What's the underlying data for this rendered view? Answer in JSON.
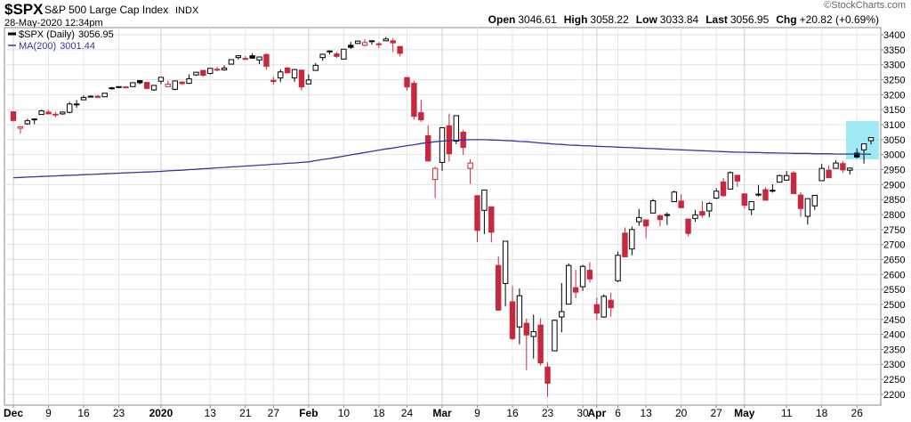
{
  "chart_data": {
    "type": "candlestick",
    "header": {
      "symbol": "$SPX",
      "name": "S&P 500 Large Cap Index",
      "exchange": "INDX",
      "datetime": "28-May-2020 12:34pm",
      "watermark": "©StockCharts.com",
      "quote": [
        {
          "label": "Open",
          "value": 3046.61
        },
        {
          "label": "High",
          "value": 3058.22
        },
        {
          "label": "Low",
          "value": 3033.84
        },
        {
          "label": "Last",
          "value": 3056.95
        },
        {
          "label": "Chg",
          "value": "+20.82 (+0.69%)"
        }
      ]
    },
    "categories": [
      "Dec",
      null,
      null,
      null,
      null,
      "9",
      null,
      null,
      null,
      null,
      "16",
      null,
      null,
      null,
      null,
      "23",
      null,
      null,
      null,
      null,
      null,
      "2020",
      null,
      null,
      null,
      null,
      null,
      null,
      "13",
      null,
      null,
      null,
      null,
      "21",
      null,
      null,
      null,
      "27",
      null,
      null,
      null,
      null,
      "Feb",
      null,
      null,
      null,
      null,
      "10",
      null,
      null,
      null,
      null,
      "18",
      null,
      null,
      null,
      "24",
      null,
      null,
      null,
      null,
      "Mar",
      null,
      null,
      null,
      null,
      "9",
      null,
      null,
      null,
      null,
      "16",
      null,
      null,
      null,
      null,
      "23",
      null,
      null,
      null,
      null,
      "30",
      null,
      "Apr",
      null,
      null,
      "6",
      null,
      null,
      null,
      "13",
      null,
      null,
      null,
      null,
      "20",
      null,
      null,
      null,
      null,
      "27",
      null,
      null,
      null,
      "May",
      null,
      null,
      null,
      null,
      null,
      "11",
      null,
      null,
      null,
      null,
      "18",
      null,
      null,
      null,
      null,
      "26",
      null,
      null
    ],
    "series": [
      {
        "name": "$SPX (Daily)",
        "up_color": "#000000",
        "down_color": "#c8283c",
        "ohlc": [
          [
            3143,
            3144,
            3110,
            3114
          ],
          [
            3088,
            3095,
            3070,
            3093
          ],
          [
            3103,
            3120,
            3100,
            3113
          ],
          [
            3119,
            3120,
            3102,
            3117
          ],
          [
            3134,
            3150,
            3134,
            3146
          ],
          [
            3142,
            3149,
            3135,
            3136
          ],
          [
            3135,
            3143,
            3125,
            3133
          ],
          [
            3136,
            3144,
            3133,
            3142
          ],
          [
            3141,
            3176,
            3138,
            3169
          ],
          [
            3167,
            3182,
            3156,
            3169
          ],
          [
            3183,
            3198,
            3183,
            3191
          ],
          [
            3195,
            3198,
            3192,
            3193
          ],
          [
            3195,
            3199,
            3191,
            3191
          ],
          [
            3193,
            3206,
            3192,
            3205
          ],
          [
            3223,
            3226,
            3217,
            3221
          ],
          [
            3227,
            3228,
            3222,
            3224
          ],
          [
            3226,
            3227,
            3222,
            3223
          ],
          [
            3227,
            3240,
            3227,
            3240
          ],
          [
            3247,
            3248,
            3235,
            3240
          ],
          [
            3241,
            3242,
            3218,
            3221
          ],
          [
            3216,
            3232,
            3213,
            3231
          ],
          [
            3245,
            3258,
            3235,
            3258
          ],
          [
            3227,
            3247,
            3226,
            3235
          ],
          [
            3218,
            3247,
            3215,
            3246
          ],
          [
            3242,
            3245,
            3233,
            3237
          ],
          [
            3238,
            3268,
            3236,
            3253
          ],
          [
            3266,
            3276,
            3263,
            3275
          ],
          [
            3281,
            3282,
            3260,
            3265
          ],
          [
            3271,
            3288,
            3268,
            3288
          ],
          [
            3285,
            3294,
            3278,
            3283
          ],
          [
            3283,
            3298,
            3280,
            3289
          ],
          [
            3302,
            3317,
            3302,
            3317
          ],
          [
            3324,
            3330,
            3318,
            3330
          ],
          [
            3321,
            3329,
            3316,
            3321
          ],
          [
            3330,
            3338,
            3320,
            3322
          ],
          [
            3316,
            3327,
            3302,
            3326
          ],
          [
            3334,
            3338,
            3284,
            3295
          ],
          [
            3248,
            3259,
            3234,
            3244
          ],
          [
            3256,
            3285,
            3242,
            3276
          ],
          [
            3289,
            3293,
            3271,
            3273
          ],
          [
            3256,
            3286,
            3243,
            3284
          ],
          [
            3282,
            3283,
            3214,
            3226
          ],
          [
            3236,
            3268,
            3236,
            3249
          ],
          [
            3281,
            3306,
            3281,
            3298
          ],
          [
            3324,
            3337,
            3313,
            3335
          ],
          [
            3345,
            3348,
            3335,
            3346
          ],
          [
            3336,
            3342,
            3323,
            3328
          ],
          [
            3319,
            3352,
            3317,
            3352
          ],
          [
            3365,
            3376,
            3353,
            3358
          ],
          [
            3371,
            3381,
            3369,
            3379
          ],
          [
            3365,
            3385,
            3361,
            3374
          ],
          [
            3379,
            3381,
            3367,
            3380
          ],
          [
            3369,
            3376,
            3356,
            3370
          ],
          [
            3380,
            3393,
            3379,
            3386
          ],
          [
            3380,
            3389,
            3342,
            3373
          ],
          [
            3361,
            3361,
            3328,
            3338
          ],
          [
            3257,
            3260,
            3214,
            3226
          ],
          [
            3238,
            3247,
            3118,
            3128
          ],
          [
            3140,
            3183,
            3109,
            3116
          ],
          [
            3063,
            3098,
            2977,
            2979
          ],
          [
            2917,
            2960,
            2855,
            2954
          ],
          [
            2974,
            3091,
            2946,
            3090
          ],
          [
            3096,
            3137,
            2977,
            3003
          ],
          [
            3045,
            3130,
            3035,
            3130
          ],
          [
            3075,
            3083,
            2999,
            3024
          ],
          [
            2954,
            2985,
            2902,
            2972
          ],
          [
            2863,
            2863,
            2708,
            2747
          ],
          [
            2814,
            2883,
            2735,
            2882
          ],
          [
            2826,
            2826,
            2707,
            2741
          ],
          [
            2630,
            2661,
            2479,
            2481
          ],
          [
            2570,
            2711,
            2493,
            2711
          ],
          [
            2509,
            2563,
            2380,
            2386
          ],
          [
            2425,
            2553,
            2367,
            2529
          ],
          [
            2437,
            2453,
            2281,
            2398
          ],
          [
            2393,
            2466,
            2319,
            2409
          ],
          [
            2431,
            2454,
            2296,
            2305
          ],
          [
            2291,
            2307,
            2192,
            2237
          ],
          [
            2345,
            2449,
            2345,
            2447
          ],
          [
            2458,
            2571,
            2407,
            2476
          ],
          [
            2501,
            2637,
            2501,
            2630
          ],
          [
            2556,
            2616,
            2521,
            2541
          ],
          [
            2559,
            2632,
            2545,
            2627
          ],
          [
            2614,
            2641,
            2572,
            2585
          ],
          [
            2499,
            2523,
            2448,
            2471
          ],
          [
            2458,
            2534,
            2455,
            2527
          ],
          [
            2514,
            2539,
            2459,
            2489
          ],
          [
            2579,
            2676,
            2574,
            2664
          ],
          [
            2738,
            2757,
            2657,
            2659
          ],
          [
            2685,
            2760,
            2664,
            2750
          ],
          [
            2776,
            2819,
            2762,
            2790
          ],
          [
            2782,
            2782,
            2721,
            2762
          ],
          [
            2805,
            2852,
            2805,
            2846
          ],
          [
            2796,
            2801,
            2761,
            2783
          ],
          [
            2799,
            2807,
            2765,
            2800
          ],
          [
            2843,
            2880,
            2843,
            2875
          ],
          [
            2845,
            2868,
            2820,
            2823
          ],
          [
            2785,
            2785,
            2728,
            2737
          ],
          [
            2787,
            2816,
            2776,
            2799
          ],
          [
            2810,
            2845,
            2790,
            2798
          ],
          [
            2812,
            2842,
            2791,
            2837
          ],
          [
            2855,
            2888,
            2852,
            2878
          ],
          [
            2909,
            2922,
            2860,
            2863
          ],
          [
            2885,
            2944,
            2885,
            2940
          ],
          [
            2931,
            2931,
            2892,
            2912
          ],
          [
            2869,
            2869,
            2821,
            2831
          ],
          [
            2816,
            2844,
            2798,
            2843
          ],
          [
            2868,
            2899,
            2860,
            2868
          ],
          [
            2883,
            2891,
            2848,
            2848
          ],
          [
            2879,
            2901,
            2873,
            2881
          ],
          [
            2908,
            2933,
            2908,
            2930
          ],
          [
            2915,
            2945,
            2913,
            2930
          ],
          [
            2939,
            2945,
            2869,
            2870
          ],
          [
            2865,
            2875,
            2793,
            2820
          ],
          [
            2794,
            2852,
            2766,
            2853
          ],
          [
            2829,
            2865,
            2816,
            2864
          ],
          [
            2913,
            2969,
            2913,
            2954
          ],
          [
            2948,
            2964,
            2922,
            2923
          ],
          [
            2954,
            2981,
            2954,
            2972
          ],
          [
            2970,
            2979,
            2939,
            2949
          ],
          [
            2948,
            2957,
            2934,
            2955
          ],
          [
            3005,
            3021,
            2988,
            2992
          ],
          [
            3016,
            3036,
            2970,
            3036
          ],
          [
            3046.61,
            3058.22,
            3033.84,
            3056.95
          ]
        ]
      },
      {
        "name": "MA(200)",
        "type": "line",
        "color": "#3535a0",
        "values": [
          2923,
          2924,
          2925,
          2926,
          2927,
          2928,
          2929,
          2930,
          2931,
          2932,
          2933,
          2934,
          2935,
          2936,
          2937,
          2938,
          2939,
          2940,
          2941,
          2942,
          2943,
          2944,
          2946,
          2947,
          2948,
          2950,
          2951,
          2953,
          2954,
          2956,
          2957,
          2959,
          2960,
          2962,
          2963,
          2965,
          2966,
          2968,
          2969,
          2971,
          2972,
          2974,
          2976,
          2980,
          2984,
          2987,
          2991,
          2995,
          2999,
          3003,
          3007,
          3011,
          3015,
          3019,
          3022,
          3026,
          3030,
          3033,
          3037,
          3040,
          3043,
          3045,
          3047,
          3048,
          3049,
          3050,
          3050,
          3050,
          3049,
          3048,
          3047,
          3046,
          3044,
          3043,
          3041,
          3039,
          3037,
          3035,
          3034,
          3032,
          3031,
          3030,
          3029,
          3028,
          3027,
          3026,
          3025,
          3024,
          3023,
          3022,
          3021,
          3020,
          3019,
          3018,
          3017,
          3016,
          3015,
          3014,
          3013,
          3012,
          3011,
          3010,
          3009,
          3008,
          3008,
          3007,
          3007,
          3006,
          3006,
          3005,
          3005,
          3004,
          3004,
          3004,
          3003,
          3003,
          3003,
          3002,
          3002,
          3002,
          3001.8,
          3001.6,
          3001.44
        ]
      }
    ],
    "ylim": [
      2164,
      3424
    ],
    "yticks": [
      2200,
      2250,
      2300,
      2350,
      2400,
      2450,
      2500,
      2550,
      2600,
      2650,
      2700,
      2750,
      2800,
      2850,
      2900,
      2950,
      3000,
      3050,
      3100,
      3150,
      3200,
      3250,
      3300,
      3350,
      3400
    ],
    "grid": true
  }
}
